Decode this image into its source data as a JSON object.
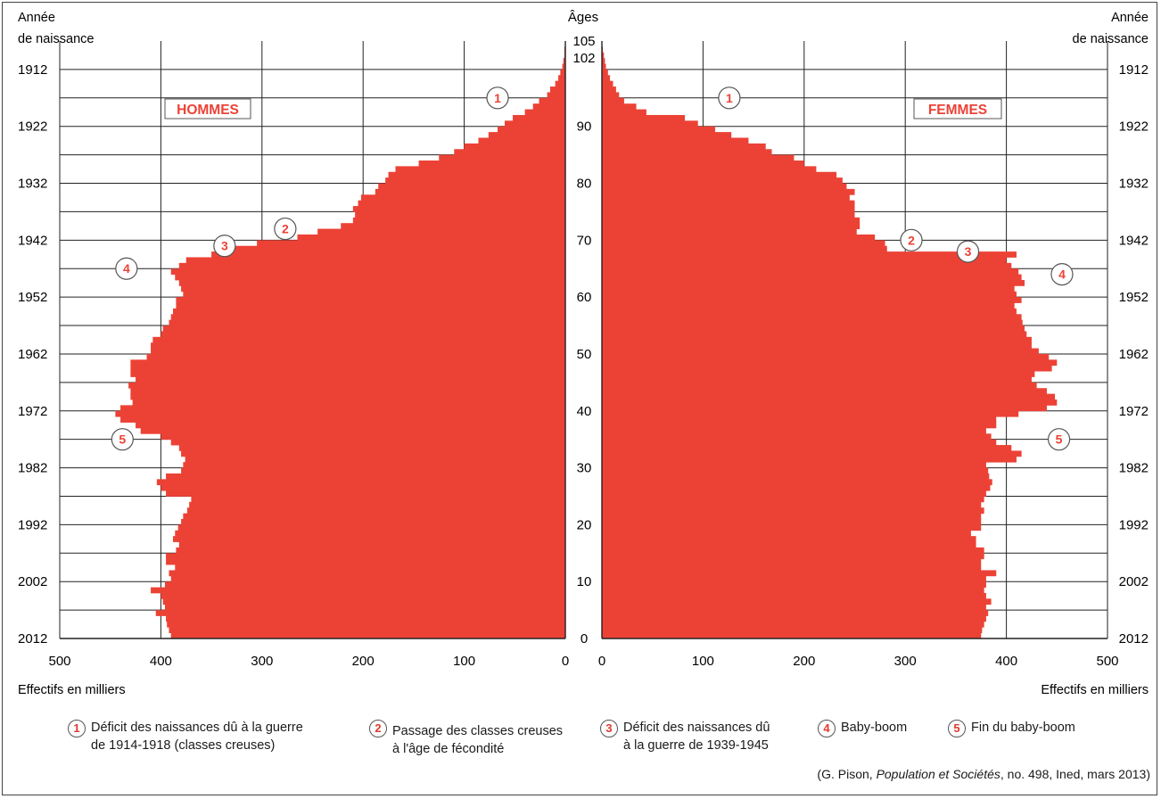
{
  "chart_data": {
    "type": "population-pyramid",
    "ages_label": "Âges",
    "year_label_lines": [
      "Année",
      "de naissance"
    ],
    "x_axis_label": "Effectifs en milliers",
    "men_label": "HOMMES",
    "women_label": "FEMMES",
    "x_ticks_men": [
      "500",
      "400",
      "300",
      "200",
      "100",
      "0"
    ],
    "x_ticks_women": [
      "0",
      "100",
      "200",
      "300",
      "400",
      "500"
    ],
    "xlim": [
      0,
      500
    ],
    "ylim": [
      0,
      105
    ],
    "age_ticks": [
      "0",
      "10",
      "20",
      "30",
      "40",
      "50",
      "60",
      "70",
      "80",
      "90",
      "102",
      "105"
    ],
    "year_ticks": [
      "2012",
      "2002",
      "1992",
      "1982",
      "1972",
      "1962",
      "1952",
      "1942",
      "1932",
      "1922",
      "1912"
    ],
    "bar_color": "#ec4236",
    "men": [
      390,
      392,
      394,
      395,
      405,
      396,
      398,
      400,
      410,
      396,
      390,
      392,
      386,
      395,
      395,
      385,
      382,
      388,
      386,
      383,
      380,
      378,
      374,
      372,
      370,
      395,
      400,
      404,
      395,
      380,
      378,
      376,
      380,
      382,
      390,
      400,
      420,
      425,
      440,
      445,
      440,
      428,
      430,
      430,
      432,
      425,
      430,
      430,
      430,
      414,
      410,
      410,
      408,
      400,
      398,
      392,
      390,
      388,
      385,
      385,
      378,
      380,
      382,
      386,
      390,
      382,
      375,
      350,
      340,
      305,
      265,
      245,
      222,
      210,
      208,
      210,
      205,
      202,
      188,
      185,
      178,
      175,
      168,
      145,
      125,
      110,
      100,
      86,
      76,
      67,
      60,
      52,
      40,
      32,
      26,
      18,
      15,
      10,
      7,
      5,
      3,
      2,
      1,
      1,
      0
    ],
    "women": [
      375,
      376,
      378,
      380,
      382,
      380,
      385,
      380,
      378,
      380,
      380,
      390,
      375,
      375,
      378,
      378,
      370,
      370,
      365,
      375,
      375,
      375,
      378,
      375,
      378,
      380,
      384,
      386,
      383,
      382,
      380,
      410,
      415,
      405,
      390,
      385,
      380,
      390,
      390,
      412,
      440,
      450,
      448,
      440,
      430,
      425,
      428,
      445,
      450,
      442,
      432,
      425,
      425,
      420,
      418,
      416,
      415,
      410,
      408,
      415,
      410,
      408,
      418,
      415,
      412,
      405,
      400,
      410,
      282,
      280,
      270,
      252,
      255,
      255,
      250,
      250,
      250,
      245,
      250,
      242,
      238,
      232,
      212,
      200,
      190,
      168,
      162,
      145,
      128,
      112,
      95,
      82,
      44,
      34,
      22,
      17,
      14,
      11,
      8,
      6,
      4,
      3,
      2,
      1,
      0
    ],
    "annotations": [
      {
        "id": "1",
        "side": "men",
        "age": 95,
        "value": 67
      },
      {
        "id": "2",
        "side": "men",
        "age": 72,
        "value": 277
      },
      {
        "id": "3",
        "side": "men",
        "age": 69,
        "value": 337
      },
      {
        "id": "4",
        "side": "men",
        "age": 65,
        "value": 434
      },
      {
        "id": "5",
        "side": "men",
        "age": 35,
        "value": 438
      },
      {
        "id": "1",
        "side": "women",
        "age": 95,
        "value": 126
      },
      {
        "id": "2",
        "side": "women",
        "age": 70,
        "value": 306
      },
      {
        "id": "3",
        "side": "women",
        "age": 68,
        "value": 362
      },
      {
        "id": "4",
        "side": "women",
        "age": 64,
        "value": 455
      },
      {
        "id": "5",
        "side": "women",
        "age": 35,
        "value": 452
      }
    ]
  },
  "legend": [
    {
      "num": "1",
      "text": "Déficit des naissances dû à la guerre\nde 1914-1918 (classes creuses)"
    },
    {
      "num": "2",
      "text": "Passage des classes creuses\nà l'âge de fécondité"
    },
    {
      "num": "3",
      "text": "Déficit des naissances dû\nà la guerre de 1939-1945"
    },
    {
      "num": "4",
      "text": "Baby-boom"
    },
    {
      "num": "5",
      "text": "Fin du baby-boom"
    }
  ],
  "source": {
    "prefix": "(G. Pison, ",
    "journal": "Population et Sociétés",
    "suffix": ", no. 498, Ined, mars 2013)"
  }
}
